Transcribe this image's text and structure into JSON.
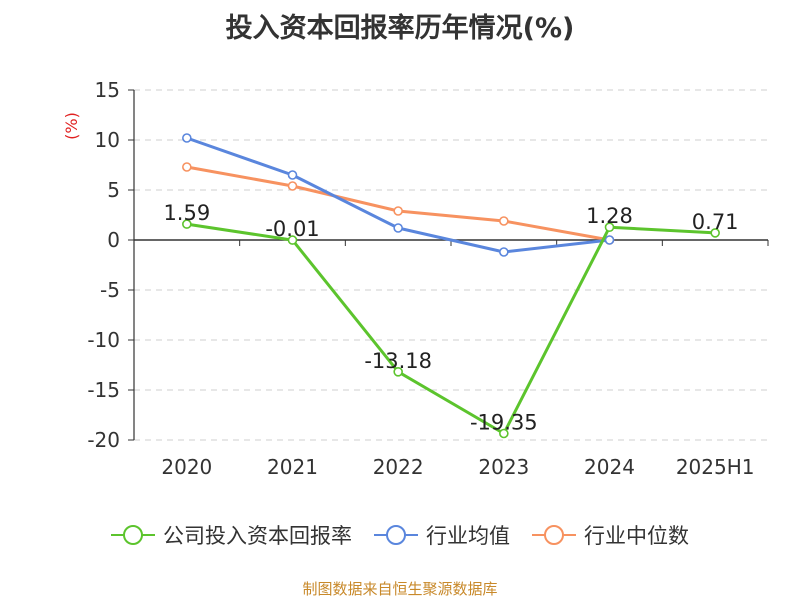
{
  "chart_data": {
    "type": "line",
    "title": "投入资本回报率历年情况(%)",
    "ylabel": "(%)",
    "categories": [
      "2020",
      "2021",
      "2022",
      "2023",
      "2024",
      "2025H1"
    ],
    "ylim": [
      -20,
      15
    ],
    "yticks": [
      15,
      10,
      5,
      0,
      -5,
      -10,
      -15,
      -20
    ],
    "grid": true,
    "legend_position": "bottom",
    "series": [
      {
        "name": "公司投入资本回报率",
        "color": "#5cc42d",
        "values": [
          1.59,
          -0.01,
          -13.18,
          -19.35,
          1.28,
          0.71
        ],
        "labels": [
          "1.59",
          "-0.01",
          "-13.18",
          "-19.35",
          "1.28",
          "0.71"
        ]
      },
      {
        "name": "行业均值",
        "color": "#5a86dd",
        "values": [
          10.2,
          6.5,
          1.2,
          -1.2,
          0.0,
          null
        ]
      },
      {
        "name": "行业中位数",
        "color": "#f79260",
        "values": [
          7.3,
          5.4,
          2.9,
          1.9,
          0.0,
          null
        ]
      }
    ]
  },
  "source": "制图数据来自恒生聚源数据库"
}
